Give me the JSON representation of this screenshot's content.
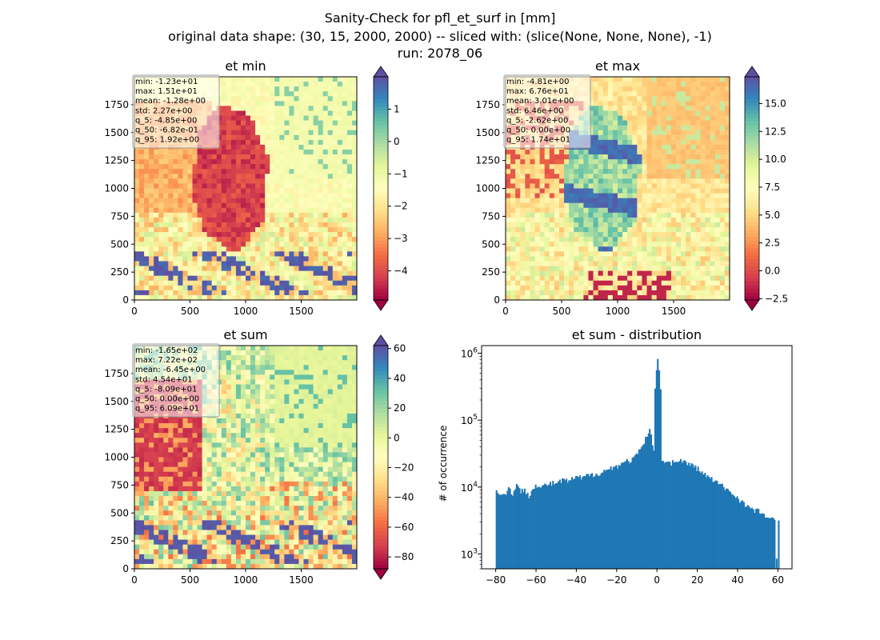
{
  "figure": {
    "title_lines": [
      "Sanity-Check for pfl_et_surf in [mm]",
      "original data shape: (30, 15, 2000, 2000) -- sliced with: (slice(None, None, None), -1)",
      "run: 2078_06"
    ]
  },
  "colors": {
    "bar": "#1f77b4",
    "cmap": [
      "#9e0142",
      "#d53e4f",
      "#f46d43",
      "#fdae61",
      "#fee08b",
      "#ffffbf",
      "#e6f598",
      "#abdda4",
      "#66c2a5",
      "#3288bd",
      "#5e4fa2"
    ]
  },
  "chart_data": [
    {
      "type": "heatmap",
      "title": "et min",
      "xticks": [
        0,
        500,
        1000,
        1500
      ],
      "yticks": [
        0,
        250,
        500,
        750,
        1000,
        1250,
        1500,
        1750
      ],
      "xlim": [
        0,
        2000
      ],
      "ylim": [
        0,
        2000
      ],
      "colorbar": {
        "vmin": -4.9,
        "vmax": 2.0,
        "ticks": [
          1,
          0,
          -1,
          -2,
          -3,
          -4
        ],
        "extend": "both",
        "cmap": "Spectral"
      },
      "stats": [
        "min: -1.23e+01",
        "max: 1.51e+01",
        "mean: -1.28e+00",
        "std: 2.27e+00",
        "q_5: -4.85e+00",
        "q_50: -6.82e-01",
        "q_95: 1.92e+00"
      ]
    },
    {
      "type": "heatmap",
      "title": "et max",
      "xticks": [
        0,
        500,
        1000,
        1500
      ],
      "yticks": [
        0,
        250,
        500,
        750,
        1000,
        1250,
        1500,
        1750
      ],
      "xlim": [
        0,
        2000
      ],
      "ylim": [
        0,
        2000
      ],
      "colorbar": {
        "vmin": -2.62,
        "vmax": 17.4,
        "ticks": [
          15.0,
          12.5,
          10.0,
          7.5,
          5.0,
          2.5,
          0.0,
          -2.5
        ],
        "tick_labels": [
          "15.0",
          "12.5",
          "10.0",
          "7.5",
          "5.0",
          "2.5",
          "0.0",
          "−2.5"
        ],
        "extend": "both",
        "cmap": "Spectral"
      },
      "stats": [
        "min: -4.81e+00",
        "max: 6.76e+01",
        "mean: 3.01e+00",
        "std: 6.46e+00",
        "q_5: -2.62e+00",
        "q_50: 0.00e+00",
        "q_95: 1.74e+01"
      ]
    },
    {
      "type": "heatmap",
      "title": "et sum",
      "xticks": [
        0,
        500,
        1000,
        1500
      ],
      "yticks": [
        0,
        250,
        500,
        750,
        1000,
        1250,
        1500,
        1750
      ],
      "xlim": [
        0,
        2000
      ],
      "ylim": [
        0,
        2000
      ],
      "colorbar": {
        "vmin": -88,
        "vmax": 62,
        "ticks": [
          60,
          40,
          20,
          0,
          -20,
          -40,
          -60,
          -80
        ],
        "extend": "both",
        "cmap": "Spectral"
      },
      "stats": [
        "min: -1.65e+02",
        "max: 7.22e+02",
        "mean: -6.45e+00",
        "std: 4.54e+01",
        "q_5: -8.09e+01",
        "q_50: 0.00e+00",
        "q_95: 6.09e+01"
      ]
    },
    {
      "type": "bar",
      "title": "et sum - distribution",
      "ylabel": "# of occurrence",
      "yscale": "log",
      "xlim": [
        -87,
        67
      ],
      "ylim": [
        600,
        1300000
      ],
      "xticks": [
        -80,
        -60,
        -40,
        -20,
        0,
        20,
        40,
        60
      ],
      "yticks": [
        {
          "value": 1000,
          "base": "10",
          "exp": "3"
        },
        {
          "value": 10000,
          "base": "10",
          "exp": "4"
        },
        {
          "value": 100000,
          "base": "10",
          "exp": "5"
        },
        {
          "value": 1000000,
          "base": "10",
          "exp": "6"
        }
      ],
      "bin_width": 0.72,
      "bins": [
        {
          "x": -80,
          "y": 8500
        },
        {
          "x": -78,
          "y": 8100
        },
        {
          "x": -76,
          "y": 7600
        },
        {
          "x": -74,
          "y": 9500
        },
        {
          "x": -72,
          "y": 8000
        },
        {
          "x": -70,
          "y": 10500
        },
        {
          "x": -68,
          "y": 8400
        },
        {
          "x": -66,
          "y": 9200
        },
        {
          "x": -64,
          "y": 7400
        },
        {
          "x": -62,
          "y": 9900
        },
        {
          "x": -60,
          "y": 10800
        },
        {
          "x": -58,
          "y": 9600
        },
        {
          "x": -56,
          "y": 10600
        },
        {
          "x": -54,
          "y": 11000
        },
        {
          "x": -52,
          "y": 11300
        },
        {
          "x": -50,
          "y": 11800
        },
        {
          "x": -48,
          "y": 12200
        },
        {
          "x": -46,
          "y": 12600
        },
        {
          "x": -44,
          "y": 12300
        },
        {
          "x": -42,
          "y": 13300
        },
        {
          "x": -40,
          "y": 13900
        },
        {
          "x": -38,
          "y": 13600
        },
        {
          "x": -36,
          "y": 14400
        },
        {
          "x": -34,
          "y": 14800
        },
        {
          "x": -32,
          "y": 15300
        },
        {
          "x": -30,
          "y": 15900
        },
        {
          "x": -28,
          "y": 16700
        },
        {
          "x": -26,
          "y": 17600
        },
        {
          "x": -24,
          "y": 18800
        },
        {
          "x": -22,
          "y": 19600
        },
        {
          "x": -20,
          "y": 21000
        },
        {
          "x": -18,
          "y": 22500
        },
        {
          "x": -16,
          "y": 23800
        },
        {
          "x": -14,
          "y": 24800
        },
        {
          "x": -12,
          "y": 26500
        },
        {
          "x": -10,
          "y": 31000
        },
        {
          "x": -8,
          "y": 38000
        },
        {
          "x": -6,
          "y": 52000
        },
        {
          "x": -4,
          "y": 68000
        },
        {
          "x": -2,
          "y": 35000
        },
        {
          "x": 0,
          "y": 820000
        },
        {
          "x": 2,
          "y": 24000
        },
        {
          "x": 4,
          "y": 25500
        },
        {
          "x": 6,
          "y": 23000
        },
        {
          "x": 8,
          "y": 23500
        },
        {
          "x": 10,
          "y": 24500
        },
        {
          "x": 12,
          "y": 25000
        },
        {
          "x": 14,
          "y": 23000
        },
        {
          "x": 16,
          "y": 21500
        },
        {
          "x": 18,
          "y": 20500
        },
        {
          "x": 20,
          "y": 18500
        },
        {
          "x": 22,
          "y": 16500
        },
        {
          "x": 24,
          "y": 14800
        },
        {
          "x": 26,
          "y": 13500
        },
        {
          "x": 28,
          "y": 12300
        },
        {
          "x": 30,
          "y": 11300
        },
        {
          "x": 32,
          "y": 10300
        },
        {
          "x": 34,
          "y": 9300
        },
        {
          "x": 36,
          "y": 8400
        },
        {
          "x": 38,
          "y": 7600
        },
        {
          "x": 40,
          "y": 6700
        },
        {
          "x": 42,
          "y": 6000
        },
        {
          "x": 44,
          "y": 5300
        },
        {
          "x": 46,
          "y": 4800
        },
        {
          "x": 48,
          "y": 4300
        },
        {
          "x": 50,
          "y": 4500
        },
        {
          "x": 52,
          "y": 3900
        },
        {
          "x": 54,
          "y": 3600
        },
        {
          "x": 56,
          "y": 3300
        },
        {
          "x": 58,
          "y": 3100
        },
        {
          "x": 59,
          "y": 850
        },
        {
          "x": 60,
          "y": 3100
        }
      ]
    }
  ]
}
